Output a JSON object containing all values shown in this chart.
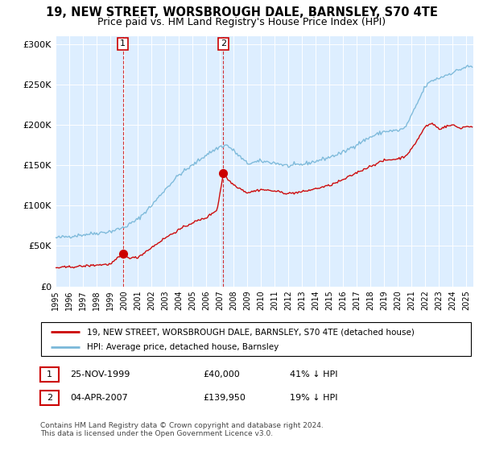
{
  "title": "19, NEW STREET, WORSBROUGH DALE, BARNSLEY, S70 4TE",
  "subtitle": "Price paid vs. HM Land Registry's House Price Index (HPI)",
  "ylabel_ticks": [
    "£0",
    "£50K",
    "£100K",
    "£150K",
    "£200K",
    "£250K",
    "£300K"
  ],
  "ylim": [
    0,
    310000
  ],
  "xlim_start": 1995.0,
  "xlim_end": 2025.5,
  "purchase1_date": 1999.917,
  "purchase1_price": 40000,
  "purchase2_date": 2007.25,
  "purchase2_price": 139950,
  "hpi_color": "#7ab8d9",
  "price_color": "#cc0000",
  "background_color": "#ddeeff",
  "legend_label1": "19, NEW STREET, WORSBROUGH DALE, BARNSLEY, S70 4TE (detached house)",
  "legend_label2": "HPI: Average price, detached house, Barnsley",
  "table_row1": [
    "1",
    "25-NOV-1999",
    "£40,000",
    "41% ↓ HPI"
  ],
  "table_row2": [
    "2",
    "04-APR-2007",
    "£139,950",
    "19% ↓ HPI"
  ],
  "footer": "Contains HM Land Registry data © Crown copyright and database right 2024.\nThis data is licensed under the Open Government Licence v3.0."
}
